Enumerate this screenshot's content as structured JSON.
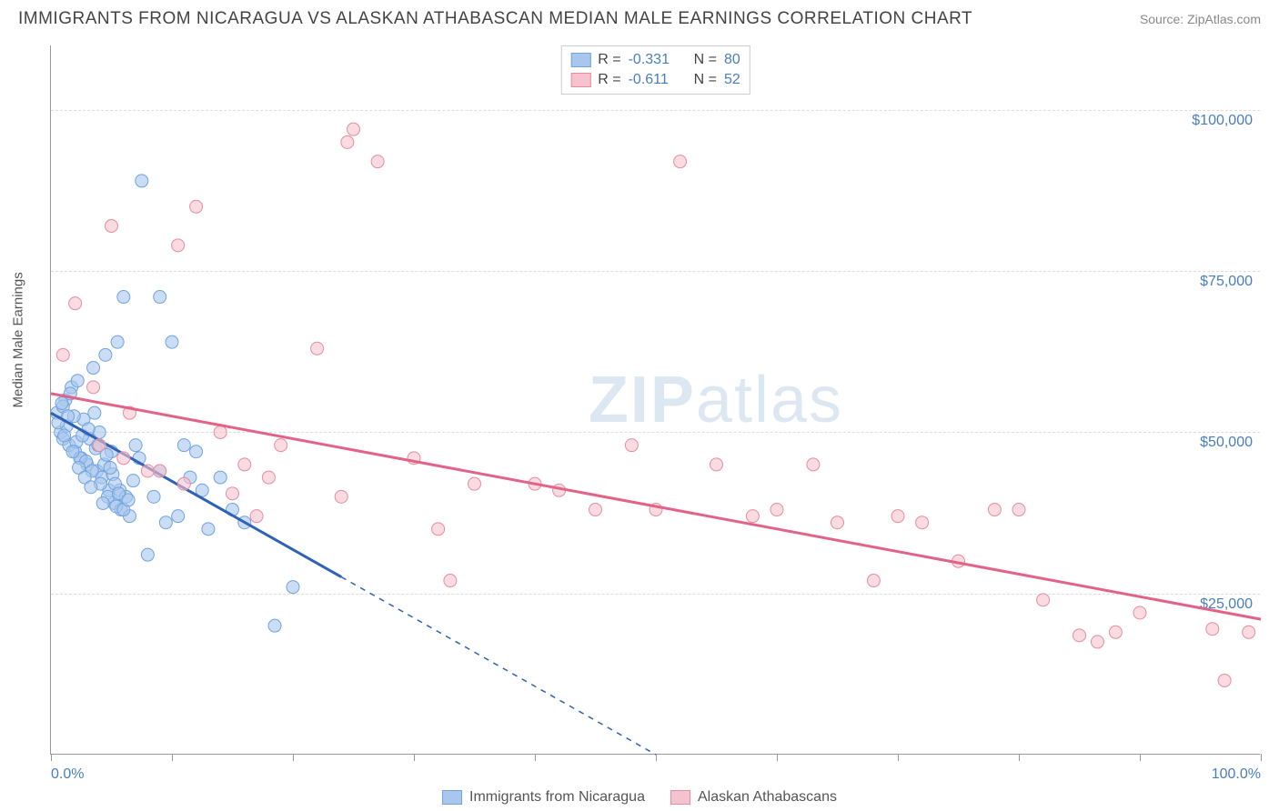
{
  "header": {
    "title": "IMMIGRANTS FROM NICARAGUA VS ALASKAN ATHABASCAN MEDIAN MALE EARNINGS CORRELATION CHART",
    "source": "Source: ZipAtlas.com"
  },
  "chart": {
    "type": "scatter",
    "y_axis_label": "Median Male Earnings",
    "xlim": [
      0,
      100
    ],
    "ylim": [
      0,
      110000
    ],
    "x_ticks": [
      0,
      10,
      20,
      30,
      40,
      50,
      60,
      70,
      80,
      90,
      100
    ],
    "x_tick_labels_shown": {
      "0": "0.0%",
      "100": "100.0%"
    },
    "y_gridlines": [
      25000,
      50000,
      75000,
      100000
    ],
    "y_tick_labels": [
      "$25,000",
      "$50,000",
      "$75,000",
      "$100,000"
    ],
    "background_color": "#ffffff",
    "grid_color": "#dddddd",
    "axis_color": "#999999",
    "series": [
      {
        "name": "Immigrants from Nicaragua",
        "color_fill": "#a9c7ec",
        "color_stroke": "#6fa3de",
        "correlation_r": "-0.331",
        "correlation_n": "80",
        "marker_radius": 7,
        "marker_opacity": 0.6,
        "trendline": {
          "color": "#2e62b5",
          "width": 3,
          "solid_x_range": [
            0,
            24
          ],
          "dashed_x_range": [
            24,
            50
          ],
          "y_start": 53000,
          "y_end": 0
        },
        "points": [
          [
            0.5,
            53000
          ],
          [
            0.8,
            50000
          ],
          [
            1.0,
            49000
          ],
          [
            1.2,
            55000
          ],
          [
            1.5,
            48000
          ],
          [
            1.7,
            57000
          ],
          [
            2.0,
            47000
          ],
          [
            2.2,
            58000
          ],
          [
            2.5,
            46000
          ],
          [
            2.7,
            52000
          ],
          [
            3.0,
            45000
          ],
          [
            3.2,
            49000
          ],
          [
            3.5,
            60000
          ],
          [
            3.8,
            44000
          ],
          [
            4.0,
            50000
          ],
          [
            4.2,
            43000
          ],
          [
            4.5,
            62000
          ],
          [
            4.8,
            41000
          ],
          [
            5.0,
            47000
          ],
          [
            5.2,
            39000
          ],
          [
            5.5,
            64000
          ],
          [
            5.8,
            38000
          ],
          [
            6.0,
            71000
          ],
          [
            6.5,
            37000
          ],
          [
            7.0,
            48000
          ],
          [
            7.5,
            89000
          ],
          [
            8.0,
            31000
          ],
          [
            8.5,
            40000
          ],
          [
            9.0,
            71000
          ],
          [
            9.5,
            36000
          ],
          [
            1.0,
            54000
          ],
          [
            1.3,
            51000
          ],
          [
            1.6,
            56000
          ],
          [
            1.9,
            52500
          ],
          [
            2.1,
            48500
          ],
          [
            2.4,
            46000
          ],
          [
            2.6,
            49500
          ],
          [
            2.9,
            45500
          ],
          [
            3.1,
            50500
          ],
          [
            3.4,
            44000
          ],
          [
            3.7,
            47500
          ],
          [
            4.1,
            42000
          ],
          [
            4.4,
            45000
          ],
          [
            4.7,
            40000
          ],
          [
            5.1,
            43500
          ],
          [
            5.4,
            38500
          ],
          [
            5.7,
            41000
          ],
          [
            6.2,
            40000
          ],
          [
            6.8,
            42500
          ],
          [
            7.3,
            46000
          ],
          [
            0.6,
            51500
          ],
          [
            0.9,
            54500
          ],
          [
            1.1,
            49500
          ],
          [
            1.4,
            52500
          ],
          [
            1.8,
            47000
          ],
          [
            2.3,
            44500
          ],
          [
            2.8,
            43000
          ],
          [
            3.3,
            41500
          ],
          [
            3.6,
            53000
          ],
          [
            3.9,
            48000
          ],
          [
            4.3,
            39000
          ],
          [
            4.6,
            46500
          ],
          [
            4.9,
            44500
          ],
          [
            5.3,
            42000
          ],
          [
            5.6,
            40500
          ],
          [
            6.0,
            38000
          ],
          [
            6.4,
            39500
          ],
          [
            10.0,
            64000
          ],
          [
            11.5,
            43000
          ],
          [
            12.5,
            41000
          ],
          [
            13.0,
            35000
          ],
          [
            10.5,
            37000
          ],
          [
            11.0,
            48000
          ],
          [
            14.0,
            43000
          ],
          [
            16.0,
            36000
          ],
          [
            9.0,
            44000
          ],
          [
            12.0,
            47000
          ],
          [
            15.0,
            38000
          ],
          [
            18.5,
            20000
          ],
          [
            20.0,
            26000
          ]
        ]
      },
      {
        "name": "Alaskan Athabascans",
        "color_fill": "#f5c3cd",
        "color_stroke": "#e88ba0",
        "correlation_r": "-0.611",
        "correlation_n": "52",
        "marker_radius": 7,
        "marker_opacity": 0.6,
        "trendline": {
          "color": "#e36387",
          "width": 3,
          "solid_x_range": [
            0,
            100
          ],
          "y_start": 56000,
          "y_end": 21000
        },
        "points": [
          [
            1.0,
            62000
          ],
          [
            2.0,
            70000
          ],
          [
            3.5,
            57000
          ],
          [
            5.0,
            82000
          ],
          [
            6.0,
            46000
          ],
          [
            8.0,
            44000
          ],
          [
            10.5,
            79000
          ],
          [
            12.0,
            85000
          ],
          [
            15.0,
            40500
          ],
          [
            17.0,
            37000
          ],
          [
            19.0,
            48000
          ],
          [
            22.0,
            63000
          ],
          [
            24.0,
            40000
          ],
          [
            24.5,
            95000
          ],
          [
            25.0,
            97000
          ],
          [
            27.0,
            92000
          ],
          [
            30.0,
            46000
          ],
          [
            32.0,
            35000
          ],
          [
            35.0,
            42000
          ],
          [
            33.0,
            27000
          ],
          [
            40.0,
            42000
          ],
          [
            42.0,
            41000
          ],
          [
            45.0,
            38000
          ],
          [
            48.0,
            48000
          ],
          [
            50.0,
            38000
          ],
          [
            52.0,
            92000
          ],
          [
            55.0,
            45000
          ],
          [
            58.0,
            37000
          ],
          [
            60.0,
            38000
          ],
          [
            63.0,
            45000
          ],
          [
            65.0,
            36000
          ],
          [
            68.0,
            27000
          ],
          [
            70.0,
            37000
          ],
          [
            72.0,
            36000
          ],
          [
            75.0,
            30000
          ],
          [
            78.0,
            38000
          ],
          [
            80.0,
            38000
          ],
          [
            82.0,
            24000
          ],
          [
            85.0,
            18500
          ],
          [
            86.5,
            17500
          ],
          [
            88.0,
            19000
          ],
          [
            90.0,
            22000
          ],
          [
            96.0,
            19500
          ],
          [
            97.0,
            11500
          ],
          [
            99.0,
            19000
          ],
          [
            4.0,
            48000
          ],
          [
            6.5,
            53000
          ],
          [
            9.0,
            44000
          ],
          [
            11.0,
            42000
          ],
          [
            14.0,
            50000
          ],
          [
            16.0,
            45000
          ],
          [
            18.0,
            43000
          ]
        ]
      }
    ],
    "legend_bottom": [
      {
        "label": "Immigrants from Nicaragua",
        "fill": "#a9c7ec",
        "stroke": "#6fa3de"
      },
      {
        "label": "Alaskan Athabascans",
        "fill": "#f5c3cd",
        "stroke": "#e88ba0"
      }
    ],
    "watermark": "ZIPatlas"
  }
}
